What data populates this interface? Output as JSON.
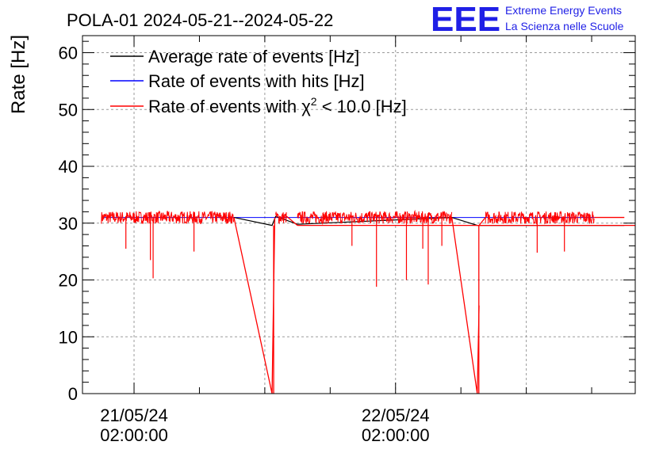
{
  "chart_data": {
    "type": "line",
    "title": "POLA-01 2024-05-21--2024-05-22",
    "ylabel": "Rate [Hz]",
    "xlabel": "",
    "ylim": [
      0,
      63
    ],
    "yticks": [
      0,
      10,
      20,
      30,
      40,
      50,
      60
    ],
    "xlim": [
      "2024-05-20 21:16:00",
      "2024-05-23 00:00:00"
    ],
    "x_tick_labels": [
      {
        "x": "2024-05-21 02:00:00",
        "date": "21/05/24",
        "time": "02:00:00"
      },
      {
        "x": "2024-05-22 02:00:00",
        "date": "22/05/24",
        "time": "02:00:00"
      }
    ],
    "grid": true,
    "legend_position": "top-left",
    "legend": [
      {
        "label": "Average rate of events [Hz]",
        "color": "#000000"
      },
      {
        "label": "Rate of events with hits [Hz]",
        "color": "#0000ff"
      },
      {
        "label_prefix": "Rate of events with ",
        "label_symbol": "χ",
        "label_sup": "2",
        "label_suffix": " < 10.0 [Hz]",
        "color": "#ff0000"
      }
    ],
    "series": [
      {
        "name": "Average rate of events [Hz]",
        "color": "#000000",
        "x": [
          "2024-05-21 11:10:00",
          "2024-05-21 14:40:00",
          "2024-05-21 15:00:00",
          "2024-05-21 17:00:00",
          "2024-05-22 07:10:00",
          "2024-05-22 09:30:00",
          "2024-05-22 23:00:00"
        ],
        "y": [
          31.0,
          29.6,
          31.2,
          29.8,
          31.0,
          29.6,
          29.6
        ]
      },
      {
        "name": "Rate of events with hits [Hz]",
        "color": "#0000ff",
        "x": [
          "2024-05-20 23:00:00",
          "2024-05-22 20:15:00"
        ],
        "y": [
          31.0,
          31.0
        ]
      },
      {
        "name": "Rate of events with χ2 < 10.0 [Hz]",
        "color": "#ff0000",
        "segments": [
          {
            "x_start": "2024-05-20 23:00:00",
            "x_end": "2024-05-21 11:10:00",
            "y_mean": 31.0,
            "y_noise": 1.1
          },
          {
            "x_start": "2024-05-21 15:00:00",
            "x_end": "2024-05-21 16:00:00",
            "y_mean": 31.0,
            "y_noise": 1.1
          },
          {
            "x_start": "2024-05-21 17:00:00",
            "x_end": "2024-05-22 07:10:00",
            "y_mean": 31.0,
            "y_noise": 1.1
          },
          {
            "x_start": "2024-05-22 10:15:00",
            "x_end": "2024-05-22 20:15:00",
            "y_mean": 31.0,
            "y_noise": 1.1
          }
        ],
        "drops": [
          {
            "x": "2024-05-21 01:15:00",
            "y": 25.5
          },
          {
            "x": "2024-05-21 03:30:00",
            "y": 23.5
          },
          {
            "x": "2024-05-21 03:45:00",
            "y": 20.3
          },
          {
            "x": "2024-05-21 07:30:00",
            "y": 25.0
          },
          {
            "x": "2024-05-21 22:00:00",
            "y": 26.0
          },
          {
            "x": "2024-05-22 00:15:00",
            "y": 18.8
          },
          {
            "x": "2024-05-22 03:00:00",
            "y": 20.0
          },
          {
            "x": "2024-05-22 04:30:00",
            "y": 25.5
          },
          {
            "x": "2024-05-22 05:00:00",
            "y": 19.2
          },
          {
            "x": "2024-05-22 06:15:00",
            "y": 26.0
          },
          {
            "x": "2024-05-22 15:00:00",
            "y": 24.8
          },
          {
            "x": "2024-05-22 17:30:00",
            "y": 25.0
          }
        ],
        "outages": [
          {
            "x_start": "2024-05-21 11:10:00",
            "x_min": "2024-05-21 14:40:00",
            "x_end": "2024-05-21 14:55:00",
            "y_after": 31.0
          },
          {
            "x_start": "2024-05-22 07:10:00",
            "x_min": "2024-05-22 09:30:00",
            "x_end": "2024-05-22 09:40:00",
            "y_after": 15.5
          }
        ],
        "steps": [
          {
            "x_start": "2024-05-21 16:00:00",
            "x_end": "2024-05-21 17:00:00",
            "y_start": 31.2,
            "y_end": 29.6
          },
          {
            "x_start": "2024-05-22 09:40:00",
            "x_end": "2024-05-22 10:15:00",
            "y_start": 29.6,
            "y_end": 31.0
          },
          {
            "x_start": "2024-05-22 20:15:00",
            "x_end": "2024-05-22 23:00:00",
            "y_start": 31.0,
            "y_end": 31.0
          }
        ]
      }
    ]
  },
  "logo": {
    "letters": "EEE",
    "line1": "Extreme Energy Events",
    "line2": "La Scienza nelle Scuole",
    "color": "#1f1fe6"
  }
}
